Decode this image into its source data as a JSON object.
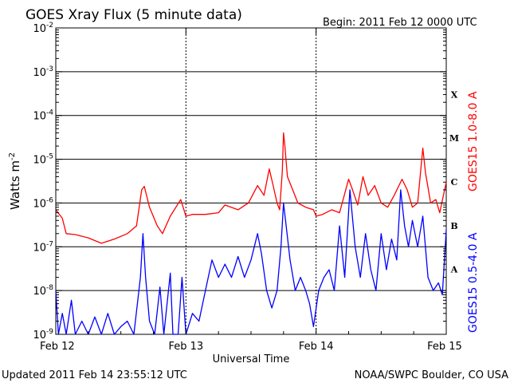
{
  "chart_data": {
    "type": "line",
    "title": "GOES Xray Flux (5 minute data)",
    "begin_label": "Begin:  2011 Feb 12 0000 UTC",
    "xlabel": "Universal Time",
    "ylabel_base": "Watts m",
    "ylabel_exp": "-2",
    "y_scale": "log",
    "ylim": [
      1e-09,
      0.01
    ],
    "y_ticks": [
      {
        "base": "10",
        "exp": "-9",
        "value": 1e-09
      },
      {
        "base": "10",
        "exp": "-8",
        "value": 1e-08
      },
      {
        "base": "10",
        "exp": "-7",
        "value": 1e-07
      },
      {
        "base": "10",
        "exp": "-6",
        "value": 1e-06
      },
      {
        "base": "10",
        "exp": "-5",
        "value": 1e-05
      },
      {
        "base": "10",
        "exp": "-4",
        "value": 0.0001
      },
      {
        "base": "10",
        "exp": "-3",
        "value": 0.001
      },
      {
        "base": "10",
        "exp": "-2",
        "value": 0.01
      }
    ],
    "x_ticks": [
      {
        "label": "Feb 12",
        "day": 0
      },
      {
        "label": "Feb 13",
        "day": 1
      },
      {
        "label": "Feb 14",
        "day": 2
      },
      {
        "label": "Feb 15",
        "day": 3
      }
    ],
    "xlim_days": [
      0,
      3
    ],
    "flare_classes": [
      {
        "label": "X",
        "value": 0.0001
      },
      {
        "label": "M",
        "value": 1e-05
      },
      {
        "label": "C",
        "value": 1e-06
      },
      {
        "label": "B",
        "value": 1e-07
      },
      {
        "label": "A",
        "value": 1e-08
      }
    ],
    "series": [
      {
        "name": "GOES15 1.0-8.0 A",
        "color": "#ff0000",
        "points": [
          [
            0.0,
            7e-07
          ],
          [
            0.05,
            4.5e-07
          ],
          [
            0.08,
            2e-07
          ],
          [
            0.15,
            1.9e-07
          ],
          [
            0.25,
            1.6e-07
          ],
          [
            0.35,
            1.2e-07
          ],
          [
            0.45,
            1.5e-07
          ],
          [
            0.55,
            2e-07
          ],
          [
            0.62,
            3e-07
          ],
          [
            0.66,
            2e-06
          ],
          [
            0.68,
            2.4e-06
          ],
          [
            0.72,
            8e-07
          ],
          [
            0.78,
            3e-07
          ],
          [
            0.82,
            2e-07
          ],
          [
            0.88,
            5e-07
          ],
          [
            0.96,
            1.2e-06
          ],
          [
            1.0,
            5e-07
          ],
          [
            1.05,
            5.5e-07
          ],
          [
            1.15,
            5.5e-07
          ],
          [
            1.25,
            6e-07
          ],
          [
            1.3,
            9e-07
          ],
          [
            1.4,
            7e-07
          ],
          [
            1.48,
            1e-06
          ],
          [
            1.55,
            2.5e-06
          ],
          [
            1.6,
            1.5e-06
          ],
          [
            1.64,
            6e-06
          ],
          [
            1.67,
            2.5e-06
          ],
          [
            1.7,
            1e-06
          ],
          [
            1.72,
            7e-07
          ],
          [
            1.74,
            5e-06
          ],
          [
            1.75,
            4e-05
          ],
          [
            1.76,
            2e-05
          ],
          [
            1.78,
            4e-06
          ],
          [
            1.82,
            2e-06
          ],
          [
            1.86,
            1e-06
          ],
          [
            1.92,
            8e-07
          ],
          [
            1.98,
            7e-07
          ],
          [
            2.0,
            5e-07
          ],
          [
            2.05,
            5.5e-07
          ],
          [
            2.12,
            7e-07
          ],
          [
            2.18,
            6e-07
          ],
          [
            2.25,
            3.5e-06
          ],
          [
            2.28,
            2e-06
          ],
          [
            2.32,
            9e-07
          ],
          [
            2.36,
            4e-06
          ],
          [
            2.4,
            1.5e-06
          ],
          [
            2.45,
            2.5e-06
          ],
          [
            2.5,
            1e-06
          ],
          [
            2.55,
            8e-07
          ],
          [
            2.6,
            1.5e-06
          ],
          [
            2.66,
            3.5e-06
          ],
          [
            2.7,
            2e-06
          ],
          [
            2.74,
            8e-07
          ],
          [
            2.78,
            1e-06
          ],
          [
            2.82,
            1.8e-05
          ],
          [
            2.84,
            5e-06
          ],
          [
            2.88,
            1e-06
          ],
          [
            2.92,
            1.2e-06
          ],
          [
            2.95,
            6e-07
          ],
          [
            3.0,
            3e-06
          ]
        ]
      },
      {
        "name": "GOES15 0.5-4.0 A",
        "color": "#0000ff",
        "points": [
          [
            0.0,
            1e-08
          ],
          [
            0.02,
            1e-09
          ],
          [
            0.05,
            3e-09
          ],
          [
            0.08,
            1e-09
          ],
          [
            0.12,
            6e-09
          ],
          [
            0.15,
            1e-09
          ],
          [
            0.2,
            2e-09
          ],
          [
            0.25,
            1e-09
          ],
          [
            0.3,
            2.5e-09
          ],
          [
            0.35,
            1e-09
          ],
          [
            0.4,
            3e-09
          ],
          [
            0.45,
            1e-09
          ],
          [
            0.5,
            1.5e-09
          ],
          [
            0.55,
            2e-09
          ],
          [
            0.6,
            1e-09
          ],
          [
            0.65,
            2e-08
          ],
          [
            0.67,
            2e-07
          ],
          [
            0.69,
            2e-08
          ],
          [
            0.72,
            2e-09
          ],
          [
            0.76,
            1e-09
          ],
          [
            0.8,
            1.2e-08
          ],
          [
            0.83,
            1e-09
          ],
          [
            0.88,
            2.5e-08
          ],
          [
            0.9,
            1e-09
          ],
          [
            0.94,
            1e-09
          ],
          [
            0.97,
            2e-08
          ],
          [
            1.0,
            1e-09
          ],
          [
            1.05,
            3e-09
          ],
          [
            1.1,
            2e-09
          ],
          [
            1.15,
            1e-08
          ],
          [
            1.2,
            5e-08
          ],
          [
            1.25,
            2e-08
          ],
          [
            1.3,
            4e-08
          ],
          [
            1.35,
            2e-08
          ],
          [
            1.4,
            6e-08
          ],
          [
            1.45,
            2e-08
          ],
          [
            1.5,
            5e-08
          ],
          [
            1.55,
            2e-07
          ],
          [
            1.58,
            7e-08
          ],
          [
            1.62,
            1e-08
          ],
          [
            1.66,
            4e-09
          ],
          [
            1.7,
            1e-08
          ],
          [
            1.73,
            1e-07
          ],
          [
            1.75,
            1e-06
          ],
          [
            1.77,
            3e-07
          ],
          [
            1.8,
            5e-08
          ],
          [
            1.84,
            1e-08
          ],
          [
            1.88,
            2e-08
          ],
          [
            1.92,
            1e-08
          ],
          [
            1.95,
            5e-09
          ],
          [
            1.98,
            1.5e-09
          ],
          [
            2.02,
            1e-08
          ],
          [
            2.06,
            2e-08
          ],
          [
            2.1,
            3e-08
          ],
          [
            2.14,
            1e-08
          ],
          [
            2.18,
            3e-07
          ],
          [
            2.22,
            2e-08
          ],
          [
            2.26,
            2e-06
          ],
          [
            2.3,
            1e-07
          ],
          [
            2.34,
            2e-08
          ],
          [
            2.38,
            2e-07
          ],
          [
            2.42,
            3e-08
          ],
          [
            2.46,
            1e-08
          ],
          [
            2.5,
            2e-07
          ],
          [
            2.54,
            3e-08
          ],
          [
            2.58,
            1.5e-07
          ],
          [
            2.62,
            5e-08
          ],
          [
            2.65,
            2e-06
          ],
          [
            2.68,
            3e-07
          ],
          [
            2.71,
            1e-07
          ],
          [
            2.74,
            4e-07
          ],
          [
            2.78,
            1e-07
          ],
          [
            2.82,
            5e-07
          ],
          [
            2.86,
            2e-08
          ],
          [
            2.9,
            1e-08
          ],
          [
            2.94,
            1.5e-08
          ],
          [
            2.97,
            8e-09
          ],
          [
            3.0,
            2.5e-07
          ]
        ]
      }
    ]
  },
  "footer": {
    "updated": "Updated 2011 Feb 14 23:55:12 UTC",
    "source": "NOAA/SWPC Boulder, CO USA"
  }
}
